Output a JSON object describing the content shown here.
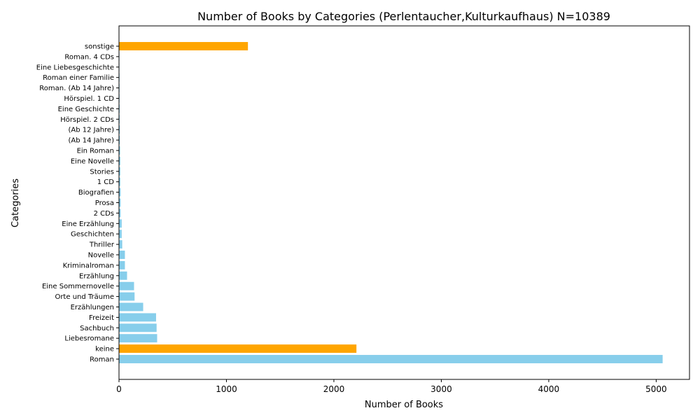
{
  "chart_data": {
    "type": "bar",
    "orientation": "horizontal",
    "title": "Number of Books by Categories (Perlentaucher,Kulturkaufhaus) N=10389",
    "xlabel": "Number of Books",
    "ylabel": "Categories",
    "xlim": [
      0,
      5310
    ],
    "xticks": [
      0,
      1000,
      2000,
      3000,
      4000,
      5000
    ],
    "grid": false,
    "colors": {
      "default": "#87CEEB",
      "highlight": "#FFA500",
      "axis": "#000000"
    },
    "categories": [
      "Roman",
      "keine",
      "Liebesromane",
      "Sachbuch",
      "Freizeit",
      "Erzählungen",
      "Orte und Träume",
      "Eine Sommernovelle",
      "Erzählung",
      "Kriminalroman",
      "Novelle",
      "Thriller",
      "Geschichten",
      "Eine Erzählung",
      "2 CDs",
      "Prosa",
      "Biografien",
      "1 CD",
      "Stories",
      "Eine Novelle",
      "Ein Roman",
      "(Ab 14 Jahre)",
      "(Ab 12 Jahre)",
      "Hörspiel. 2 CDs",
      "Eine Geschichte",
      "Hörspiel. 1 CD",
      "Roman. (Ab 14 Jahre)",
      "Roman einer Familie",
      "Eine Liebesgeschichte",
      "Roman. 4 CDs",
      "sonstige"
    ],
    "values": [
      5060,
      2210,
      355,
      350,
      345,
      225,
      145,
      140,
      75,
      55,
      55,
      30,
      25,
      25,
      15,
      15,
      15,
      12,
      12,
      12,
      10,
      8,
      8,
      6,
      6,
      5,
      5,
      5,
      4,
      4,
      1200
    ],
    "highlighted": [
      "keine",
      "sonstige"
    ]
  }
}
